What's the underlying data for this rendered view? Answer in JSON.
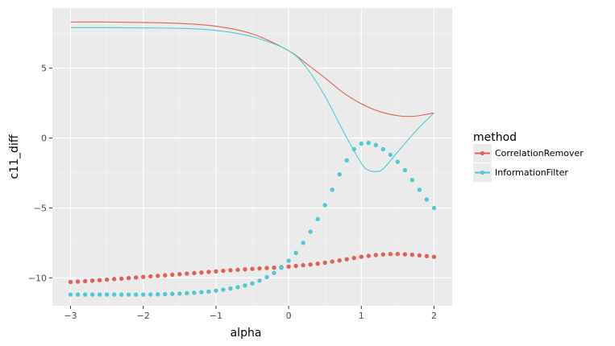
{
  "chart_data": {
    "type": "line",
    "xlabel": "alpha",
    "ylabel": "c11_diff",
    "xlim": [
      -3.25,
      2.25
    ],
    "ylim": [
      -12.0,
      9.3
    ],
    "x_ticks": [
      -3,
      -2,
      -1,
      0,
      1,
      2
    ],
    "x_tick_labels": [
      "−3",
      "−2",
      "−1",
      "0",
      "1",
      "2"
    ],
    "y_ticks": [
      -10,
      -5,
      0,
      5
    ],
    "y_tick_labels": [
      "−10",
      "−5",
      "0",
      "5"
    ],
    "grid": true,
    "background": "#ebebeb",
    "legend": {
      "title": "method",
      "position": "right",
      "entries": [
        {
          "label": "CorrelationRemover",
          "color": "#e06157"
        },
        {
          "label": "InformationFilter",
          "color": "#4fcad4"
        }
      ]
    },
    "series": [
      {
        "name": "CorrelationRemover",
        "style": "line",
        "color": "#e06157",
        "x": [
          -3.0,
          -2.5,
          -2.0,
          -1.5,
          -1.0,
          -0.5,
          0.0,
          0.25,
          0.5,
          0.75,
          1.0,
          1.25,
          1.5,
          1.7,
          1.85,
          2.0
        ],
        "y": [
          8.3,
          8.3,
          8.27,
          8.2,
          8.0,
          7.45,
          6.25,
          5.3,
          4.3,
          3.25,
          2.45,
          1.9,
          1.6,
          1.55,
          1.65,
          1.8
        ]
      },
      {
        "name": "InformationFilter",
        "style": "line",
        "color": "#4fcad4",
        "x": [
          -3.0,
          -2.5,
          -2.0,
          -1.5,
          -1.0,
          -0.5,
          0.0,
          0.25,
          0.5,
          0.75,
          1.0,
          1.1,
          1.2,
          1.3,
          1.5,
          1.75,
          2.0
        ],
        "y": [
          7.9,
          7.9,
          7.88,
          7.85,
          7.7,
          7.25,
          6.25,
          5.0,
          3.0,
          0.5,
          -1.8,
          -2.3,
          -2.4,
          -2.2,
          -1.0,
          0.5,
          1.8
        ]
      },
      {
        "name": "CorrelationRemover",
        "style": "points",
        "color": "#e06157",
        "x": [
          -3.0,
          -2.9,
          -2.8,
          -2.7,
          -2.6,
          -2.5,
          -2.4,
          -2.3,
          -2.2,
          -2.1,
          -2.0,
          -1.9,
          -1.8,
          -1.7,
          -1.6,
          -1.5,
          -1.4,
          -1.3,
          -1.2,
          -1.1,
          -1.0,
          -0.9,
          -0.8,
          -0.7,
          -0.6,
          -0.5,
          -0.4,
          -0.3,
          -0.2,
          -0.1,
          0.0,
          0.1,
          0.2,
          0.3,
          0.4,
          0.5,
          0.6,
          0.7,
          0.8,
          0.9,
          1.0,
          1.1,
          1.2,
          1.3,
          1.4,
          1.5,
          1.6,
          1.7,
          1.8,
          1.9,
          2.0
        ],
        "y": [
          -10.3,
          -10.27,
          -10.24,
          -10.2,
          -10.17,
          -10.13,
          -10.09,
          -10.06,
          -10.02,
          -9.98,
          -9.94,
          -9.9,
          -9.86,
          -9.82,
          -9.78,
          -9.74,
          -9.7,
          -9.66,
          -9.62,
          -9.58,
          -9.54,
          -9.5,
          -9.46,
          -9.43,
          -9.39,
          -9.36,
          -9.33,
          -9.3,
          -9.27,
          -9.24,
          -9.2,
          -9.15,
          -9.1,
          -9.05,
          -8.99,
          -8.92,
          -8.84,
          -8.76,
          -8.67,
          -8.58,
          -8.5,
          -8.43,
          -8.37,
          -8.33,
          -8.3,
          -8.3,
          -8.32,
          -8.35,
          -8.4,
          -8.45,
          -8.5
        ]
      },
      {
        "name": "InformationFilter",
        "style": "points",
        "color": "#4fcad4",
        "x": [
          -3.0,
          -2.9,
          -2.8,
          -2.7,
          -2.6,
          -2.5,
          -2.4,
          -2.3,
          -2.2,
          -2.1,
          -2.0,
          -1.9,
          -1.8,
          -1.7,
          -1.6,
          -1.5,
          -1.4,
          -1.3,
          -1.2,
          -1.1,
          -1.0,
          -0.9,
          -0.8,
          -0.7,
          -0.6,
          -0.5,
          -0.4,
          -0.3,
          -0.2,
          -0.1,
          0.0,
          0.1,
          0.2,
          0.3,
          0.4,
          0.5,
          0.6,
          0.7,
          0.8,
          0.9,
          1.0,
          1.1,
          1.2,
          1.3,
          1.4,
          1.5,
          1.6,
          1.7,
          1.8,
          1.9,
          2.0
        ],
        "y": [
          -11.2,
          -11.2,
          -11.2,
          -11.2,
          -11.2,
          -11.2,
          -11.2,
          -11.2,
          -11.2,
          -11.2,
          -11.2,
          -11.19,
          -11.18,
          -11.17,
          -11.15,
          -11.13,
          -11.1,
          -11.07,
          -11.03,
          -10.98,
          -10.92,
          -10.85,
          -10.77,
          -10.67,
          -10.55,
          -10.4,
          -10.2,
          -9.95,
          -9.65,
          -9.28,
          -8.78,
          -8.22,
          -7.5,
          -6.7,
          -5.8,
          -4.8,
          -3.7,
          -2.6,
          -1.6,
          -0.8,
          -0.4,
          -0.35,
          -0.5,
          -0.8,
          -1.2,
          -1.7,
          -2.3,
          -3.0,
          -3.7,
          -4.4,
          -5.0
        ]
      }
    ]
  }
}
